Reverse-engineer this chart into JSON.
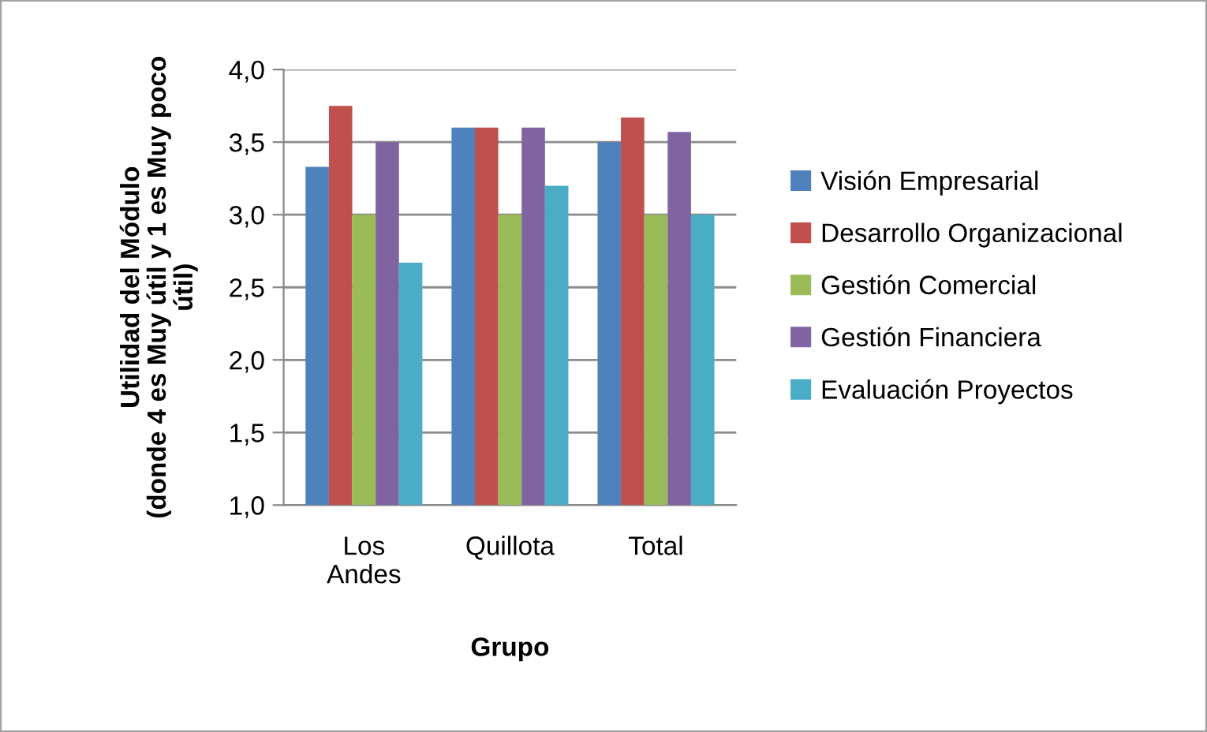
{
  "chart_data": {
    "type": "bar",
    "xlabel": "Grupo",
    "ylabel": "Utilidad del Módulo\n(donde 4 es Muy útil y 1 es Muy poco\nútil)",
    "categories": [
      "Los Andes",
      "Quillota",
      "Total"
    ],
    "series": [
      {
        "name": "Visión Empresarial",
        "color": "#4f81bd",
        "values": [
          3.33,
          3.6,
          3.5
        ]
      },
      {
        "name": "Desarrollo Organizacional",
        "color": "#c0504d",
        "values": [
          3.75,
          3.6,
          3.67
        ]
      },
      {
        "name": "Gestión Comercial",
        "color": "#9bbb59",
        "values": [
          3.0,
          3.0,
          3.0
        ]
      },
      {
        "name": "Gestión Financiera",
        "color": "#8064a2",
        "values": [
          3.5,
          3.6,
          3.57
        ]
      },
      {
        "name": "Evaluación Proyectos",
        "color": "#4bacc6",
        "values": [
          2.67,
          3.2,
          3.0
        ]
      }
    ],
    "ylim": [
      1.0,
      4.0
    ],
    "yticks": [
      {
        "value": 1.0,
        "label": "1,0"
      },
      {
        "value": 1.5,
        "label": "1,5"
      },
      {
        "value": 2.0,
        "label": "2,0"
      },
      {
        "value": 2.5,
        "label": "2,5"
      },
      {
        "value": 3.0,
        "label": "3,0"
      },
      {
        "value": 3.5,
        "label": "3,5"
      },
      {
        "value": 4.0,
        "label": "4,0"
      }
    ],
    "grid": "y",
    "legend": "right"
  }
}
